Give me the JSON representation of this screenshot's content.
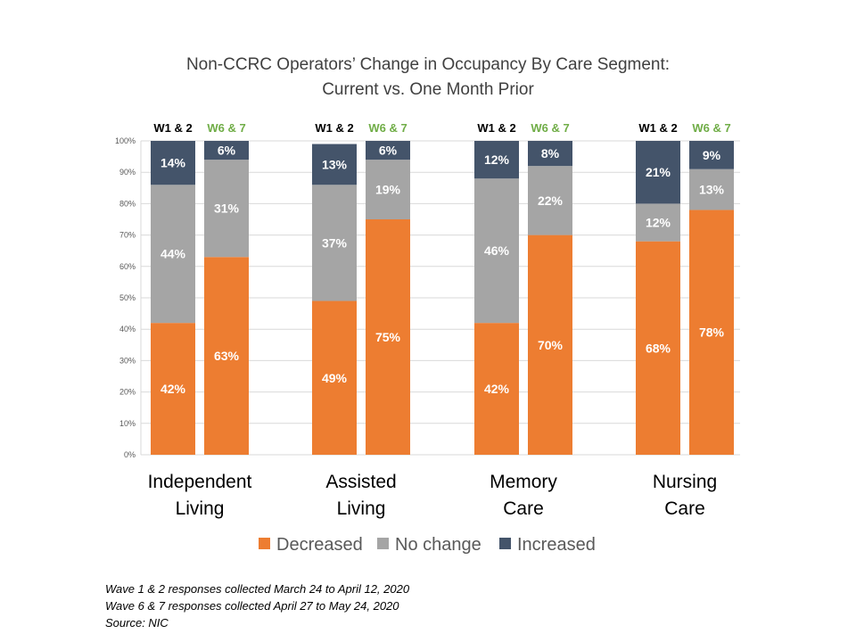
{
  "chart_data": {
    "type": "bar",
    "stacked": true,
    "title": "Non-CCRC Operators’ Change in Occupancy By Care Segment:",
    "subtitle": "Current vs. One Month Prior",
    "ylim": [
      0,
      100
    ],
    "yticks": [
      "0%",
      "10%",
      "20%",
      "30%",
      "40%",
      "50%",
      "60%",
      "70%",
      "80%",
      "90%",
      "100%"
    ],
    "grid": true,
    "legend_position": "bottom",
    "groups": [
      {
        "label_lines": [
          "Independent",
          "Living"
        ],
        "bars": [
          {
            "label": "W1 & 2",
            "label_color": "#000000",
            "decreased": 42,
            "no_change": 44,
            "increased": 14
          },
          {
            "label": "W6 & 7",
            "label_color": "#70ad47",
            "decreased": 63,
            "no_change": 31,
            "increased": 6
          }
        ]
      },
      {
        "label_lines": [
          "Assisted",
          "Living"
        ],
        "bars": [
          {
            "label": "W1 & 2",
            "label_color": "#000000",
            "decreased": 49,
            "no_change": 37,
            "increased": 13
          },
          {
            "label": "W6 & 7",
            "label_color": "#70ad47",
            "decreased": 75,
            "no_change": 19,
            "increased": 6
          }
        ]
      },
      {
        "label_lines": [
          "Memory",
          "Care"
        ],
        "bars": [
          {
            "label": "W1 & 2",
            "label_color": "#000000",
            "decreased": 42,
            "no_change": 46,
            "increased": 12
          },
          {
            "label": "W6 & 7",
            "label_color": "#70ad47",
            "decreased": 70,
            "no_change": 22,
            "increased": 8
          }
        ]
      },
      {
        "label_lines": [
          "Nursing",
          "Care"
        ],
        "bars": [
          {
            "label": "W1 & 2",
            "label_color": "#000000",
            "decreased": 68,
            "no_change": 12,
            "increased": 21
          },
          {
            "label": "W6 & 7",
            "label_color": "#70ad47",
            "decreased": 78,
            "no_change": 13,
            "increased": 9
          }
        ]
      }
    ],
    "series": [
      {
        "key": "decreased",
        "name": "Decreased",
        "color": "#ed7d31"
      },
      {
        "key": "no_change",
        "name": "No change",
        "color": "#a5a5a5"
      },
      {
        "key": "increased",
        "name": "Increased",
        "color": "#44546a"
      }
    ]
  },
  "footnotes": [
    "Wave 1 & 2 responses collected March 24 to April 12, 2020",
    "Wave 6 & 7 responses collected April 27 to May 24, 2020",
    "Source: NIC"
  ]
}
